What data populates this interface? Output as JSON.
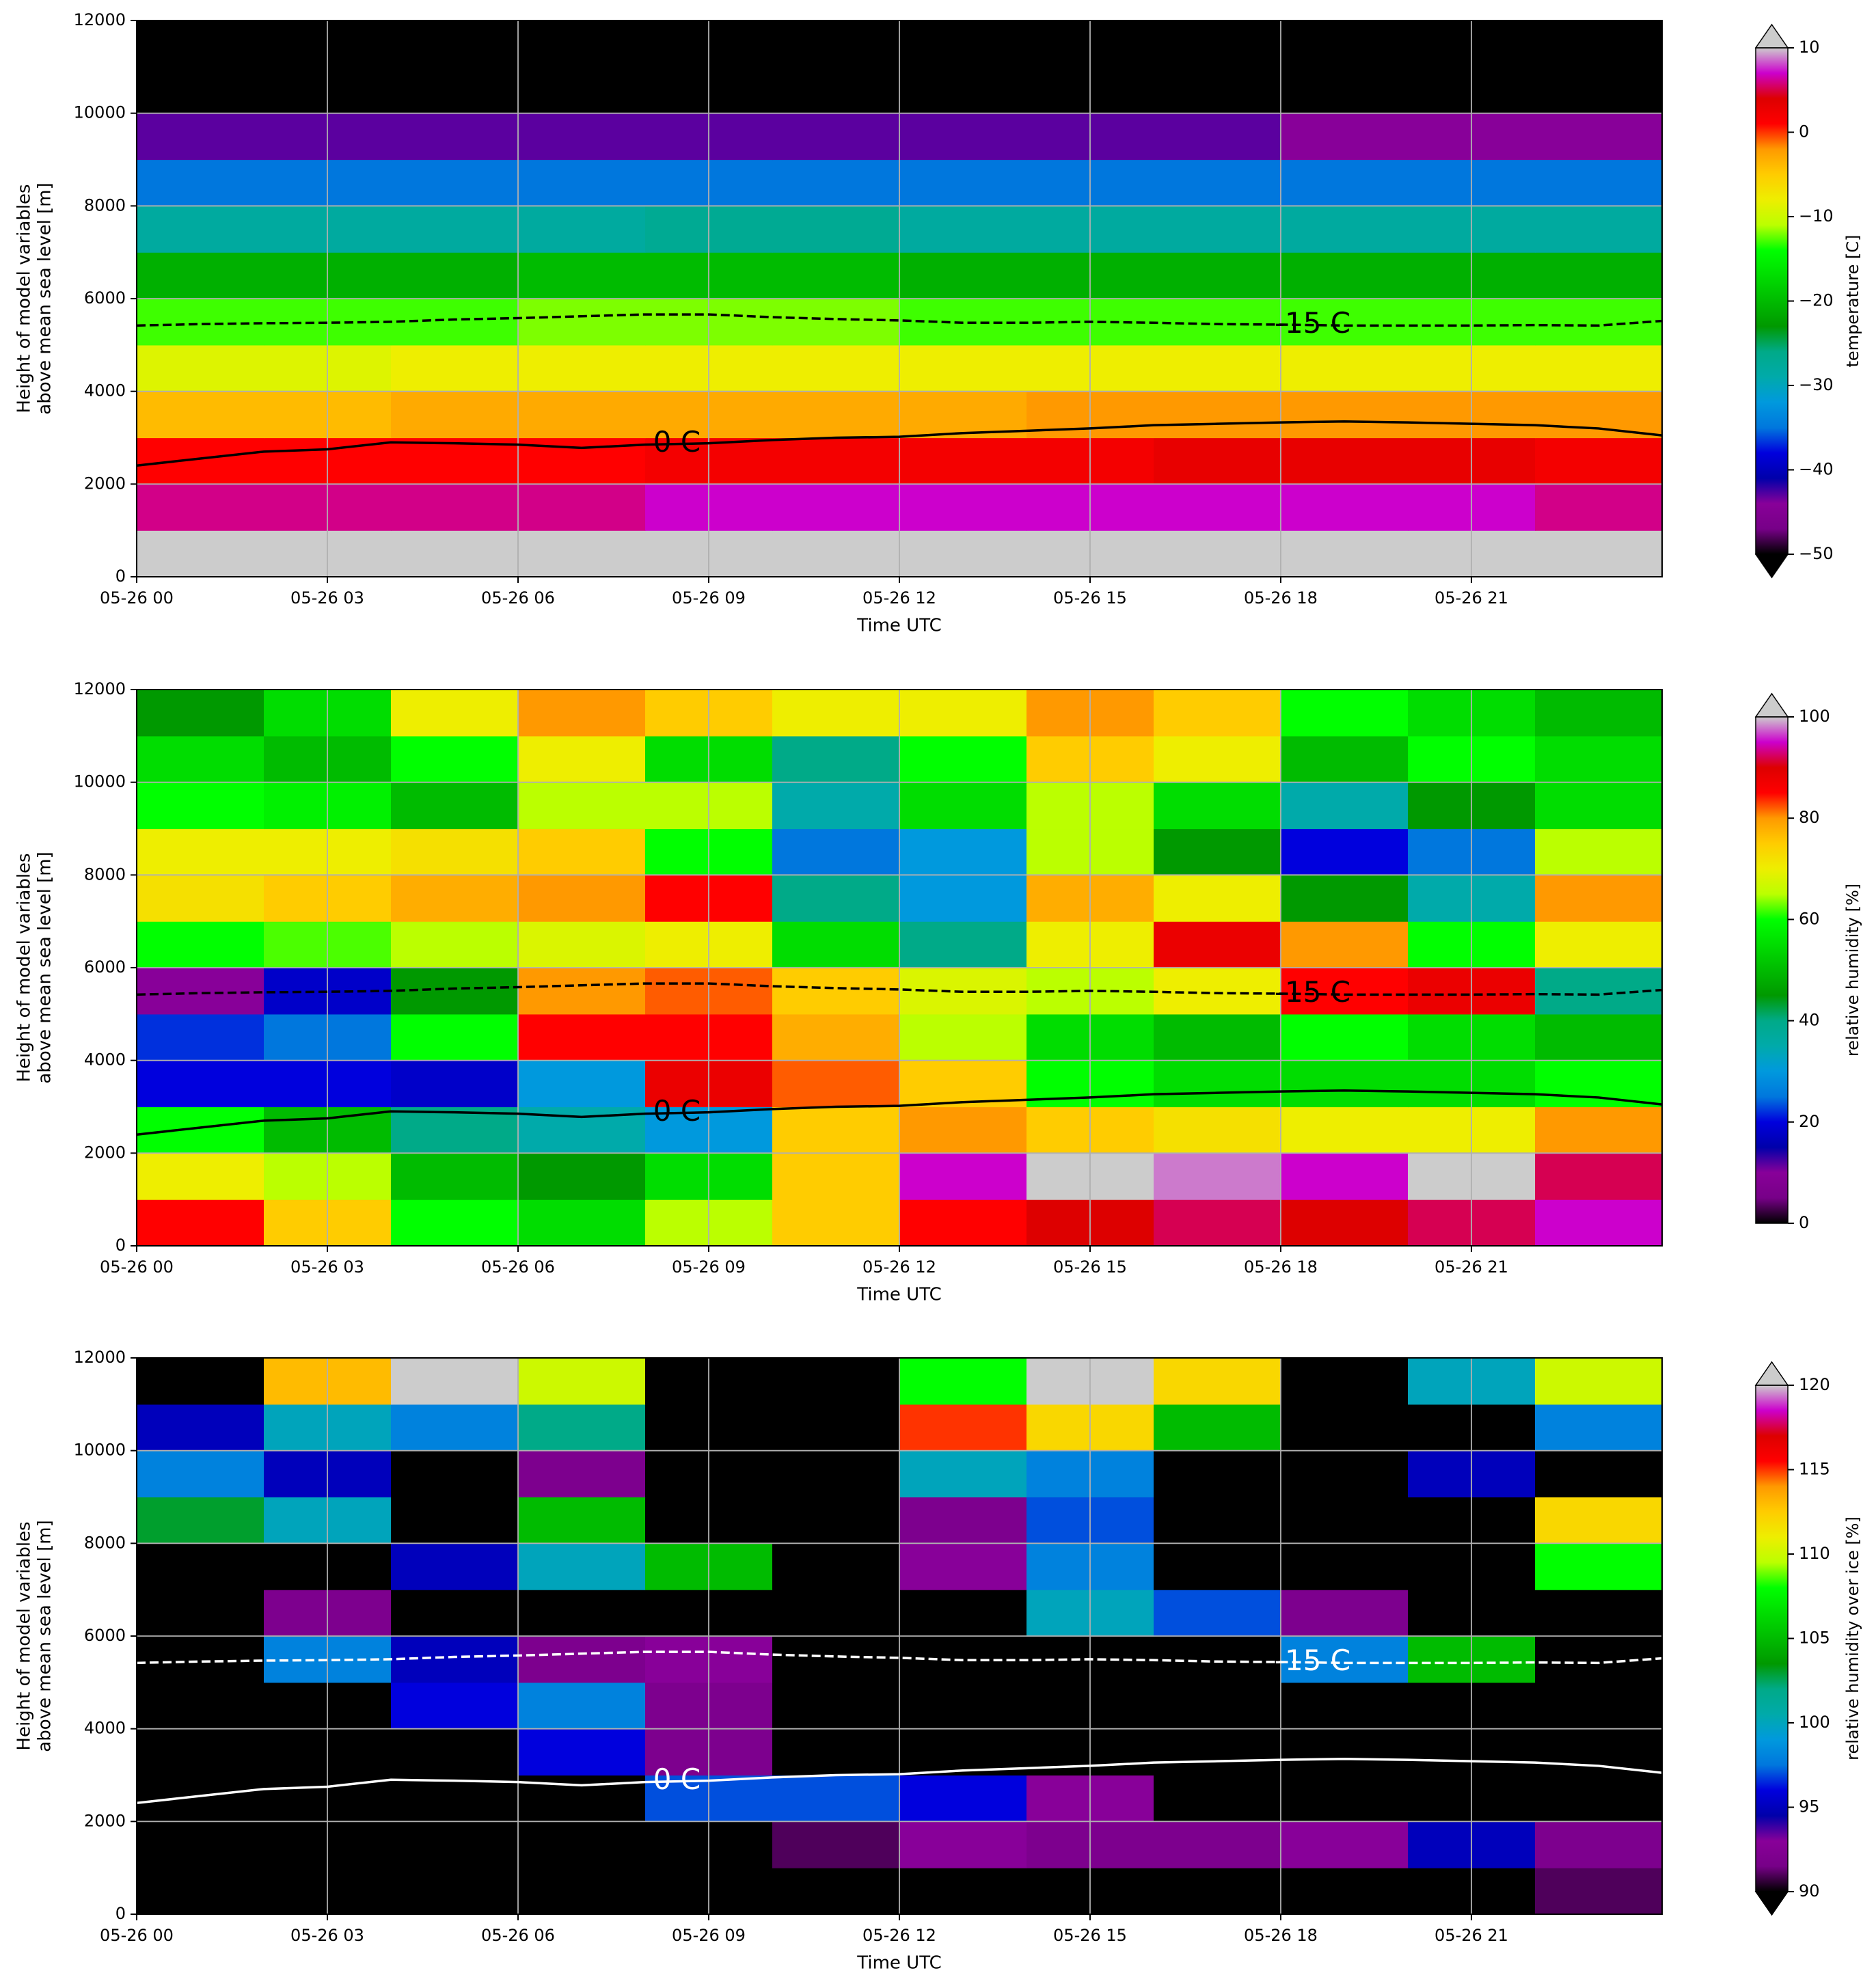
{
  "chart_data": [
    {
      "type": "heatmap",
      "colormap": "nipy_spectral",
      "grid": true,
      "xlabel": "Time UTC",
      "ylabel": [
        "Height of model variables",
        "above mean sea level [m]"
      ],
      "xlim": [
        0,
        24
      ],
      "ylim": [
        0,
        12000
      ],
      "xticks": [
        {
          "value": 0,
          "label": "05-26 00"
        },
        {
          "value": 3,
          "label": "05-26 03"
        },
        {
          "value": 6,
          "label": "05-26 06"
        },
        {
          "value": 9,
          "label": "05-26 09"
        },
        {
          "value": 12,
          "label": "05-26 12"
        },
        {
          "value": 15,
          "label": "05-26 15"
        },
        {
          "value": 18,
          "label": "05-26 18"
        },
        {
          "value": 21,
          "label": "05-26 21"
        }
      ],
      "yticks": [
        0,
        2000,
        4000,
        6000,
        8000,
        10000,
        12000
      ],
      "x": [
        1,
        3,
        5,
        7,
        9,
        11,
        13,
        15,
        17,
        19,
        21,
        23
      ],
      "y": [
        500,
        1500,
        2500,
        3500,
        4500,
        5500,
        6500,
        7500,
        8500,
        9500,
        10500,
        11500
      ],
      "z": [
        [
          12,
          12,
          12,
          12,
          12,
          12,
          12,
          12,
          12,
          12,
          12,
          12
        ],
        [
          6,
          6,
          6,
          6,
          7,
          7,
          7,
          7,
          7,
          7,
          7,
          6
        ],
        [
          1,
          1,
          1,
          1,
          2,
          2,
          2,
          2,
          3,
          3,
          3,
          2
        ],
        [
          -4,
          -4,
          -3,
          -3,
          -3,
          -3,
          -3,
          -2,
          -2,
          -2,
          -2,
          -2
        ],
        [
          -9,
          -9,
          -8,
          -8,
          -8,
          -8,
          -8,
          -8,
          -8,
          -8,
          -8,
          -8
        ],
        [
          -13,
          -13,
          -13,
          -12,
          -12,
          -12,
          -13,
          -13,
          -13,
          -13,
          -13,
          -13
        ],
        [
          -21,
          -21,
          -21,
          -20,
          -20,
          -20,
          -21,
          -21,
          -21,
          -21,
          -21,
          -21
        ],
        [
          -28,
          -28,
          -28,
          -28,
          -27,
          -27,
          -28,
          -28,
          -28,
          -28,
          -28,
          -28
        ],
        [
          -35,
          -35,
          -35,
          -35,
          -35,
          -35,
          -35,
          -35,
          -35,
          -35,
          -35,
          -35
        ],
        [
          -43,
          -43,
          -43,
          -43,
          -43,
          -43,
          -43,
          -43,
          -43,
          -44,
          -44,
          -44
        ],
        [
          -55,
          -55,
          -55,
          -55,
          -55,
          -55,
          -55,
          -55,
          -55,
          -55,
          -55,
          -55
        ],
        [
          -58,
          -58,
          -58,
          -58,
          -58,
          -58,
          -58,
          -58,
          -58,
          -58,
          -58,
          -58
        ]
      ],
      "colorbar": {
        "label": "temperature [C]",
        "lim": [
          -50,
          10
        ],
        "extend": "both",
        "ticks": [
          {
            "value": -50,
            "label": "−50"
          },
          {
            "value": -40,
            "label": "−40"
          },
          {
            "value": -30,
            "label": "−30"
          },
          {
            "value": -20,
            "label": "−20"
          },
          {
            "value": -10,
            "label": "−10"
          },
          0,
          10
        ]
      },
      "contours": [
        {
          "label": "0 C",
          "color": "#000000",
          "dashed": false,
          "x": [
            0,
            1,
            2,
            3,
            4,
            5,
            6,
            7,
            8,
            9,
            10,
            11,
            12,
            13,
            14,
            15,
            16,
            17,
            18,
            19,
            20,
            21,
            22,
            23,
            24
          ],
          "y": [
            2400,
            2550,
            2700,
            2750,
            2900,
            2880,
            2850,
            2780,
            2850,
            2880,
            2950,
            3000,
            3020,
            3100,
            3150,
            3200,
            3270,
            3300,
            3330,
            3350,
            3330,
            3300,
            3270,
            3200,
            3050
          ]
        },
        {
          "label": "-15 C",
          "color": "#000000",
          "dashed": true,
          "x": [
            0,
            1,
            2,
            3,
            4,
            5,
            6,
            7,
            8,
            9,
            10,
            11,
            12,
            13,
            14,
            15,
            16,
            17,
            18,
            19,
            20,
            21,
            22,
            23,
            24
          ],
          "y": [
            5420,
            5450,
            5470,
            5480,
            5500,
            5550,
            5580,
            5620,
            5660,
            5660,
            5600,
            5560,
            5530,
            5480,
            5480,
            5500,
            5480,
            5450,
            5440,
            5420,
            5420,
            5420,
            5430,
            5420,
            5520
          ]
        }
      ]
    },
    {
      "type": "heatmap",
      "colormap": "nipy_spectral",
      "grid": true,
      "xlabel": "Time UTC",
      "ylabel": [
        "Height of model variables",
        "above mean sea level [m]"
      ],
      "xlim": [
        0,
        24
      ],
      "ylim": [
        0,
        12000
      ],
      "xticks": [
        {
          "value": 0,
          "label": "05-26 00"
        },
        {
          "value": 3,
          "label": "05-26 03"
        },
        {
          "value": 6,
          "label": "05-26 06"
        },
        {
          "value": 9,
          "label": "05-26 09"
        },
        {
          "value": 12,
          "label": "05-26 12"
        },
        {
          "value": 15,
          "label": "05-26 15"
        },
        {
          "value": 18,
          "label": "05-26 18"
        },
        {
          "value": 21,
          "label": "05-26 21"
        }
      ],
      "yticks": [
        0,
        2000,
        4000,
        6000,
        8000,
        10000,
        12000
      ],
      "x": [
        1,
        3,
        5,
        7,
        9,
        11,
        13,
        15,
        17,
        19,
        21,
        23
      ],
      "y": [
        500,
        1500,
        2500,
        3500,
        4500,
        5500,
        6500,
        7500,
        8500,
        9500,
        10500,
        11500
      ],
      "z": [
        [
          85,
          75,
          60,
          55,
          65,
          75,
          85,
          90,
          92,
          90,
          92,
          95
        ],
        [
          70,
          65,
          50,
          45,
          55,
          75,
          95,
          100,
          98,
          95,
          100,
          92
        ],
        [
          60,
          50,
          40,
          35,
          30,
          75,
          80,
          75,
          72,
          70,
          70,
          80
        ],
        [
          20,
          20,
          18,
          30,
          88,
          82,
          75,
          60,
          55,
          55,
          55,
          60
        ],
        [
          22,
          25,
          60,
          85,
          85,
          78,
          65,
          55,
          50,
          60,
          55,
          50
        ],
        [
          10,
          18,
          45,
          80,
          82,
          75,
          68,
          65,
          70,
          85,
          88,
          40
        ],
        [
          60,
          62,
          65,
          68,
          70,
          55,
          40,
          70,
          88,
          80,
          60,
          70
        ],
        [
          72,
          75,
          78,
          80,
          85,
          40,
          30,
          78,
          70,
          45,
          35,
          80
        ],
        [
          70,
          70,
          72,
          75,
          60,
          25,
          30,
          65,
          45,
          20,
          25,
          65
        ],
        [
          60,
          58,
          50,
          65,
          65,
          35,
          55,
          65,
          55,
          35,
          45,
          55
        ],
        [
          55,
          50,
          60,
          70,
          55,
          40,
          60,
          75,
          70,
          50,
          60,
          55
        ],
        [
          45,
          55,
          70,
          80,
          75,
          70,
          70,
          80,
          75,
          60,
          55,
          50
        ]
      ],
      "colorbar": {
        "label": "relative humidity [%]",
        "lim": [
          0,
          100
        ],
        "extend": "max",
        "ticks": [
          0,
          20,
          40,
          60,
          80,
          100
        ]
      },
      "contours": [
        {
          "label": "0 C",
          "color": "#000000",
          "dashed": false,
          "x": [
            0,
            1,
            2,
            3,
            4,
            5,
            6,
            7,
            8,
            9,
            10,
            11,
            12,
            13,
            14,
            15,
            16,
            17,
            18,
            19,
            20,
            21,
            22,
            23,
            24
          ],
          "y": [
            2400,
            2550,
            2700,
            2750,
            2900,
            2880,
            2850,
            2780,
            2850,
            2880,
            2950,
            3000,
            3020,
            3100,
            3150,
            3200,
            3270,
            3300,
            3330,
            3350,
            3330,
            3300,
            3270,
            3200,
            3050
          ]
        },
        {
          "label": "-15 C",
          "color": "#000000",
          "dashed": true,
          "x": [
            0,
            1,
            2,
            3,
            4,
            5,
            6,
            7,
            8,
            9,
            10,
            11,
            12,
            13,
            14,
            15,
            16,
            17,
            18,
            19,
            20,
            21,
            22,
            23,
            24
          ],
          "y": [
            5420,
            5450,
            5470,
            5480,
            5500,
            5550,
            5580,
            5620,
            5660,
            5660,
            5600,
            5560,
            5530,
            5480,
            5480,
            5500,
            5480,
            5450,
            5440,
            5420,
            5420,
            5420,
            5430,
            5420,
            5520
          ]
        }
      ]
    },
    {
      "type": "heatmap",
      "colormap": "nipy_spectral",
      "grid": true,
      "xlabel": "Time UTC",
      "ylabel": [
        "Height of model variables",
        "above mean sea level [m]"
      ],
      "xlim": [
        0,
        24
      ],
      "ylim": [
        0,
        12000
      ],
      "xticks": [
        {
          "value": 0,
          "label": "05-26 00"
        },
        {
          "value": 3,
          "label": "05-26 03"
        },
        {
          "value": 6,
          "label": "05-26 06"
        },
        {
          "value": 9,
          "label": "05-26 09"
        },
        {
          "value": 12,
          "label": "05-26 12"
        },
        {
          "value": 15,
          "label": "05-26 15"
        },
        {
          "value": 18,
          "label": "05-26 18"
        },
        {
          "value": 21,
          "label": "05-26 21"
        }
      ],
      "yticks": [
        0,
        2000,
        4000,
        6000,
        8000,
        10000,
        12000
      ],
      "x": [
        1,
        3,
        5,
        7,
        9,
        11,
        13,
        15,
        17,
        19,
        21,
        23
      ],
      "y": [
        500,
        1500,
        2500,
        3500,
        4500,
        5500,
        6500,
        7500,
        8500,
        9500,
        10500,
        11500
      ],
      "z": [
        [
          50,
          50,
          50,
          50,
          50,
          50,
          50,
          50,
          50,
          50,
          50,
          91
        ],
        [
          50,
          50,
          50,
          50,
          50,
          91,
          93,
          92,
          92,
          93,
          95,
          92
        ],
        [
          50,
          50,
          50,
          50,
          97,
          97,
          96,
          93,
          50,
          50,
          50,
          50
        ],
        [
          50,
          50,
          50,
          96,
          92,
          50,
          50,
          50,
          50,
          50,
          50,
          50
        ],
        [
          50,
          50,
          96,
          98,
          92,
          50,
          50,
          50,
          50,
          50,
          50,
          50
        ],
        [
          50,
          98,
          95,
          92,
          93,
          50,
          50,
          50,
          50,
          98,
          105,
          50
        ],
        [
          50,
          92,
          50,
          50,
          50,
          50,
          50,
          100,
          97,
          92,
          50,
          50
        ],
        [
          50,
          50,
          95,
          100,
          105,
          50,
          93,
          98,
          50,
          50,
          50,
          108
        ],
        [
          103,
          100,
          50,
          105,
          50,
          50,
          92,
          97,
          50,
          50,
          50,
          112
        ],
        [
          98,
          95,
          50,
          92,
          50,
          50,
          100,
          98,
          50,
          50,
          95,
          50
        ],
        [
          95,
          100,
          98,
          102,
          50,
          50,
          115,
          112,
          105,
          50,
          50,
          98
        ],
        [
          50,
          113,
          121,
          110,
          50,
          50,
          108,
          121,
          112,
          50,
          100,
          110
        ]
      ],
      "colorbar": {
        "label": "relative humidity over ice [%]",
        "lim": [
          90,
          120
        ],
        "extend": "both",
        "ticks": [
          90,
          95,
          100,
          105,
          110,
          115,
          120
        ]
      },
      "contours": [
        {
          "label": "0 C",
          "color": "#ffffff",
          "dashed": false,
          "x": [
            0,
            1,
            2,
            3,
            4,
            5,
            6,
            7,
            8,
            9,
            10,
            11,
            12,
            13,
            14,
            15,
            16,
            17,
            18,
            19,
            20,
            21,
            22,
            23,
            24
          ],
          "y": [
            2400,
            2550,
            2700,
            2750,
            2900,
            2880,
            2850,
            2780,
            2850,
            2880,
            2950,
            3000,
            3020,
            3100,
            3150,
            3200,
            3270,
            3300,
            3330,
            3350,
            3330,
            3300,
            3270,
            3200,
            3050
          ]
        },
        {
          "label": "-15 C",
          "color": "#ffffff",
          "dashed": true,
          "x": [
            0,
            1,
            2,
            3,
            4,
            5,
            6,
            7,
            8,
            9,
            10,
            11,
            12,
            13,
            14,
            15,
            16,
            17,
            18,
            19,
            20,
            21,
            22,
            23,
            24
          ],
          "y": [
            5420,
            5450,
            5470,
            5480,
            5500,
            5550,
            5580,
            5620,
            5660,
            5660,
            5600,
            5560,
            5530,
            5480,
            5480,
            5500,
            5480,
            5450,
            5440,
            5420,
            5420,
            5420,
            5430,
            5420,
            5520
          ]
        }
      ]
    }
  ]
}
